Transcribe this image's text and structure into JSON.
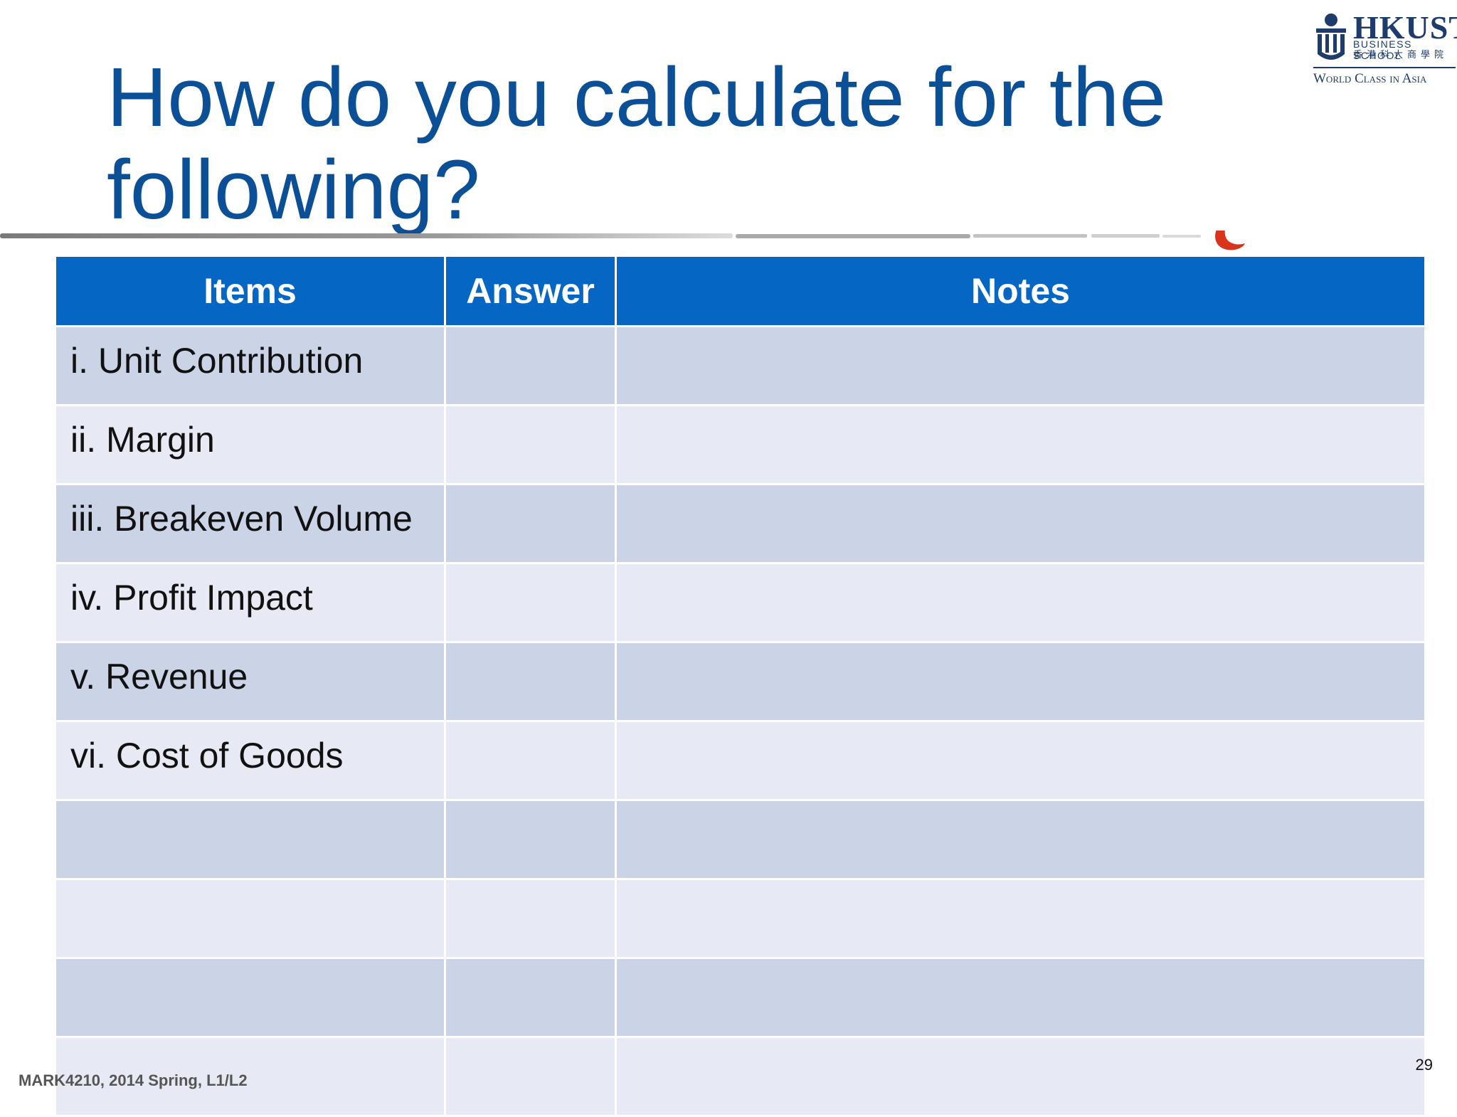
{
  "slide": {
    "title": "How do you calculate for the following?",
    "logo": {
      "name": "HKUST",
      "subtitle": "BUSINESS SCHOOL",
      "chinese": "香港科大商學院",
      "tagline": "World Class in Asia"
    },
    "table": {
      "headers": [
        "Items",
        "Answer",
        "Notes"
      ],
      "rows": [
        [
          "i. Unit Contribution",
          "",
          ""
        ],
        [
          "ii. Margin",
          "",
          ""
        ],
        [
          "iii. Breakeven Volume",
          "",
          ""
        ],
        [
          "iv. Profit Impact",
          "",
          ""
        ],
        [
          "v. Revenue",
          "",
          ""
        ],
        [
          "vi. Cost of Goods",
          "",
          ""
        ],
        [
          "",
          "",
          ""
        ],
        [
          "",
          "",
          ""
        ],
        [
          "",
          "",
          ""
        ],
        [
          "",
          "",
          ""
        ]
      ]
    },
    "footer": "MARK4210, 2014 Spring, L1/L2",
    "page_number": "29",
    "colors": {
      "title": "#0b4f96",
      "header_bg": "#0566c4",
      "row_odd": "#cbd3e6",
      "row_even": "#e7eaf4"
    },
    "icons": [
      "hkust-emblem-icon",
      "flame-icon"
    ]
  }
}
